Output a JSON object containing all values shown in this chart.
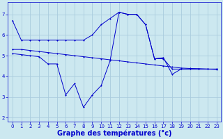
{
  "background_color": "#cce8f0",
  "grid_color": "#aaccdd",
  "line_color": "#0000cc",
  "xlabel": "Graphe des températures (°c)",
  "xlabel_fontsize": 7,
  "ylim": [
    1.8,
    7.6
  ],
  "xlim": [
    -0.5,
    23.5
  ],
  "yticks": [
    2,
    3,
    4,
    5,
    6,
    7
  ],
  "xticks": [
    0,
    1,
    2,
    3,
    4,
    5,
    6,
    7,
    8,
    9,
    10,
    11,
    12,
    13,
    14,
    15,
    16,
    17,
    18,
    19,
    20,
    21,
    22,
    23
  ],
  "tick_fontsize": 5,
  "series1_x": [
    0,
    1,
    2,
    3,
    4,
    5,
    6,
    7,
    8,
    9,
    10,
    11,
    12,
    13,
    14,
    15,
    16,
    17,
    18,
    19,
    20,
    21,
    22,
    23
  ],
  "series1_y": [
    6.7,
    5.75,
    5.75,
    5.75,
    5.75,
    5.75,
    5.75,
    5.75,
    5.75,
    6.0,
    6.5,
    6.8,
    7.1,
    7.0,
    7.0,
    6.5,
    4.85,
    4.85,
    4.35,
    4.35,
    4.35,
    4.35,
    4.35,
    4.35
  ],
  "series2_x": [
    0,
    1,
    2,
    3,
    4,
    5,
    6,
    7,
    8,
    9,
    10,
    11,
    12,
    13,
    14,
    15,
    16,
    17,
    18,
    19,
    20,
    21,
    22,
    23
  ],
  "series2_y": [
    5.3,
    5.3,
    5.25,
    5.2,
    5.15,
    5.1,
    5.05,
    5.0,
    4.95,
    4.9,
    4.85,
    4.8,
    4.75,
    4.7,
    4.65,
    4.6,
    4.55,
    4.5,
    4.45,
    4.4,
    4.38,
    4.37,
    4.35,
    4.33
  ],
  "series3_x": [
    0,
    1,
    2,
    3,
    4,
    5,
    6,
    7,
    8,
    9,
    10,
    11,
    12,
    13,
    14,
    15,
    16,
    17,
    18,
    19,
    20,
    21,
    22,
    23
  ],
  "series3_y": [
    5.1,
    5.05,
    5.0,
    4.95,
    4.6,
    4.6,
    3.1,
    3.65,
    2.5,
    3.1,
    3.55,
    4.75,
    7.1,
    7.0,
    7.0,
    6.5,
    4.85,
    4.9,
    4.1,
    4.35,
    4.35,
    4.35,
    4.35,
    4.35
  ]
}
